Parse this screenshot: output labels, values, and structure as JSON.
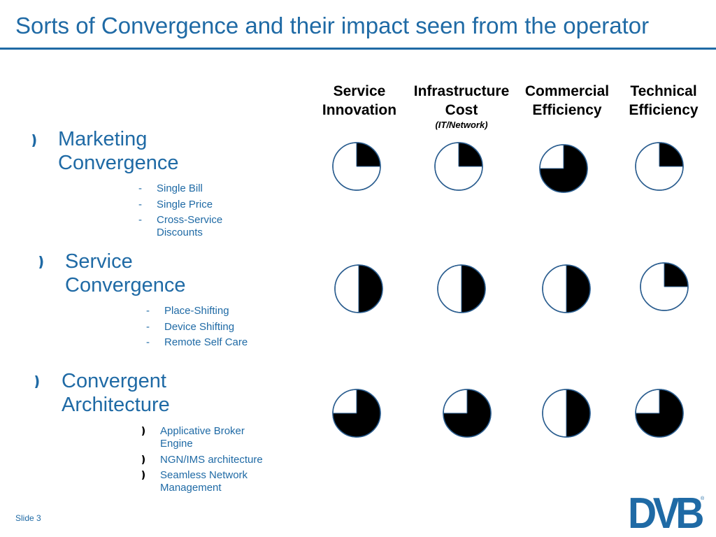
{
  "title": "Sorts of Convergence and their impact seen from the operator",
  "columns": [
    {
      "line1": "Service",
      "line2": "Innovation",
      "note": ""
    },
    {
      "line1": "Infrastructure",
      "line2": "Cost",
      "note": "(IT/Network)"
    },
    {
      "line1": "Commercial",
      "line2": "Efficiency",
      "note": ""
    },
    {
      "line1": "Technical",
      "line2": "Efficiency",
      "note": ""
    }
  ],
  "sections": [
    {
      "title_line1": "Marketing",
      "title_line2": "Convergence",
      "bullet_style": "dash",
      "items": [
        {
          "line1": "Single Bill",
          "line2": ""
        },
        {
          "line1": "Single Price",
          "line2": ""
        },
        {
          "line1": "Cross-Service",
          "line2": "Discounts"
        }
      ],
      "impact_quarters": [
        1,
        1,
        3,
        1
      ]
    },
    {
      "title_line1": "Service",
      "title_line2": "Convergence",
      "bullet_style": "dash",
      "items": [
        {
          "line1": "Place-Shifting",
          "line2": ""
        },
        {
          "line1": "Device Shifting",
          "line2": ""
        },
        {
          "line1": "Remote Self Care",
          "line2": ""
        }
      ],
      "impact_quarters": [
        2,
        2,
        2,
        1
      ]
    },
    {
      "title_line1": "Convergent",
      "title_line2": "Architecture",
      "bullet_style": "chevron",
      "items": [
        {
          "line1": "Applicative Broker",
          "line2": "Engine"
        },
        {
          "line1": "NGN/IMS architecture",
          "line2": ""
        },
        {
          "line1": "Seamless Network",
          "line2": "Management"
        }
      ],
      "impact_quarters": [
        3,
        3,
        2,
        3
      ]
    }
  ],
  "footer": {
    "slide_label": "Slide 3"
  },
  "logo": {
    "text": "DVB",
    "registered": "®"
  },
  "colors": {
    "accent": "#1f6aa5",
    "pie_fill": "#000000",
    "pie_outline": "#2a5d8f"
  }
}
